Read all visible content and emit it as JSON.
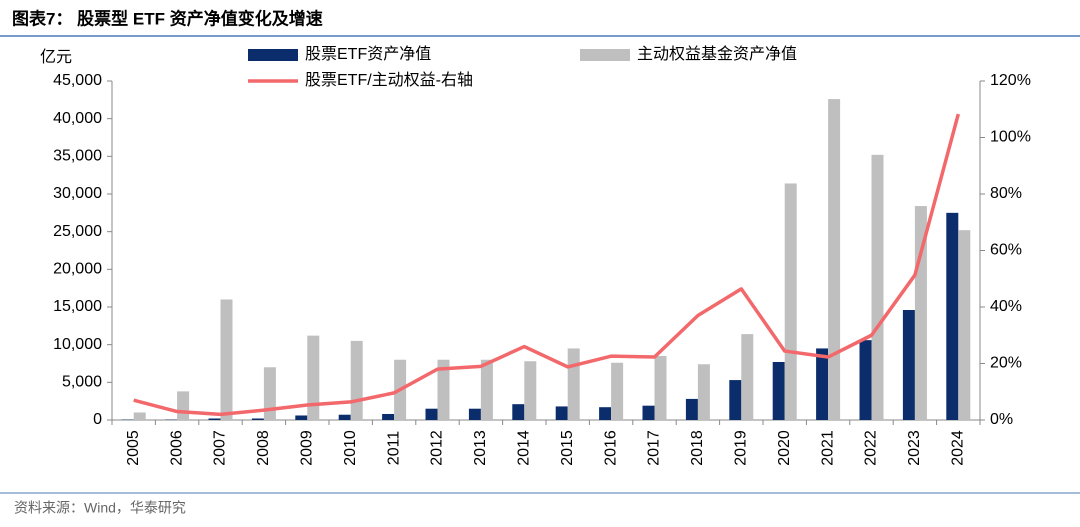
{
  "chart_data": {
    "type": "bar-line",
    "title": "图表7： 股票型 ETF 资产净值变化及增速",
    "y_axis_label": "亿元",
    "source": "资料来源：Wind，华泰研究",
    "categories": [
      "2005",
      "2006",
      "2007",
      "2008",
      "2009",
      "2010",
      "2011",
      "2012",
      "2013",
      "2014",
      "2015",
      "2016",
      "2017",
      "2018",
      "2019",
      "2020",
      "2021",
      "2022",
      "2023",
      "2024"
    ],
    "series": [
      {
        "name": "股票ETF资产净值",
        "color": "#0c2d6b",
        "kind": "bar",
        "values": [
          50,
          50,
          200,
          200,
          600,
          700,
          800,
          1500,
          1500,
          2100,
          1800,
          1700,
          1900,
          2800,
          5300,
          7700,
          9500,
          10600,
          14600,
          27500
        ]
      },
      {
        "name": "主动权益基金资产净值",
        "color": "#bfbfbf",
        "kind": "bar",
        "values": [
          1000,
          3800,
          16000,
          7000,
          11200,
          10500,
          8000,
          8000,
          8000,
          7800,
          9500,
          7600,
          8500,
          7400,
          11400,
          31400,
          42600,
          35200,
          28400,
          25200
        ]
      },
      {
        "name": "股票ETF/主动权益-右轴",
        "color": "#f2686b",
        "kind": "line",
        "axis": "y2",
        "values": [
          7,
          3,
          2,
          3.5,
          5.3,
          6.4,
          9.6,
          18,
          19,
          26,
          18.8,
          22.6,
          22.3,
          37,
          46.4,
          24.4,
          22.3,
          30,
          51.3,
          108.3
        ]
      }
    ],
    "ylim": [
      0,
      45000
    ],
    "yticks": [
      0,
      {
        "value": 5000,
        "label": "5,000"
      },
      {
        "value": 10000,
        "label": "10,000"
      },
      {
        "value": 15000,
        "label": "15,000"
      },
      {
        "value": 20000,
        "label": "20,000"
      },
      {
        "value": 25000,
        "label": "25,000"
      },
      {
        "value": 30000,
        "label": "30,000"
      },
      {
        "value": 35000,
        "label": "35,000"
      },
      {
        "value": 40000,
        "label": "40,000"
      },
      {
        "value": 45000,
        "label": "45,000"
      }
    ],
    "y2lim": [
      0,
      120
    ],
    "y2ticks": [
      {
        "value": 0,
        "label": "0%"
      },
      {
        "value": 20,
        "label": "20%"
      },
      {
        "value": 40,
        "label": "40%"
      },
      {
        "value": 60,
        "label": "60%"
      },
      {
        "value": 80,
        "label": "80%"
      },
      {
        "value": 100,
        "label": "100%"
      },
      {
        "value": 120,
        "label": "120%"
      }
    ]
  }
}
